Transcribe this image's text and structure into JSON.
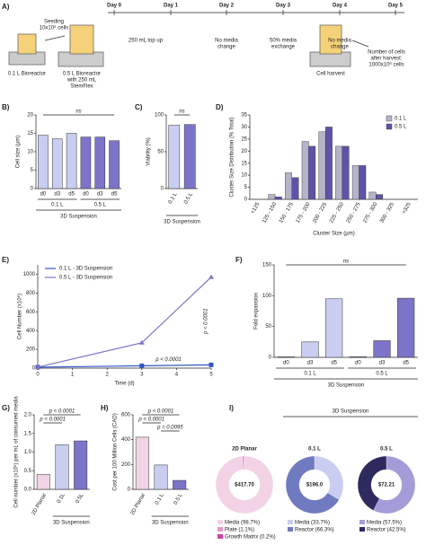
{
  "timeline": {
    "panel": "A)",
    "days": [
      "Day 0",
      "Day 1",
      "Day 2",
      "Day 3",
      "Day 4",
      "Day 5"
    ],
    "notes": [
      [
        "Seeding",
        "10x10⁶ cells"
      ],
      [
        "250 mL top up"
      ],
      [
        "No media",
        "change"
      ],
      [
        "50% media",
        "exchange"
      ],
      [
        "No media",
        "change"
      ],
      [
        "Number of cells",
        "after harvest:",
        "1000x10⁶ cells"
      ]
    ],
    "vessels": [
      [
        "0.1 L Bioreactor"
      ],
      [
        "0.5 L Bioreactor",
        "with 250 mL",
        "StemFlex"
      ],
      [
        "Cell harvest"
      ]
    ]
  },
  "chart_data": [
    {
      "type": "bar",
      "panel": "B)",
      "ylabel": "Cell size (µm)",
      "categories": [
        "d0",
        "d3",
        "d5",
        "d0",
        "d3",
        "d5"
      ],
      "values": [
        14.5,
        13.5,
        15,
        14,
        14,
        13
      ],
      "colors": [
        "#c9cdf0",
        "#c9cdf0",
        "#c9cdf0",
        "#7c74c9",
        "#7c74c9",
        "#7c74c9"
      ],
      "groups": [
        "0.1 L",
        "0.5 L"
      ],
      "group_title": "3D Suspension",
      "ylim": [
        0,
        20
      ],
      "yticks": [
        0,
        5,
        10,
        15,
        20
      ],
      "annotations": [
        "ns"
      ]
    },
    {
      "type": "bar",
      "panel": "C)",
      "ylabel": "Viability (%)",
      "categories": [
        "0.1 L",
        "0.5 L"
      ],
      "values": [
        86,
        87
      ],
      "colors": [
        "#c9cdf0",
        "#7c74c9"
      ],
      "group_title": "3D Suspension",
      "ylim": [
        0,
        100
      ],
      "yticks": [
        0,
        50,
        100
      ],
      "annotations": [
        "ns"
      ]
    },
    {
      "type": "grouped_bar",
      "panel": "D)",
      "ylabel": "Cluster Size Distribution (% Total)",
      "xlabel": "Cluster Size (µm)",
      "categories": [
        "<125",
        "125 - 150",
        "150 - 175",
        "175 - 200",
        "200 - 225",
        "225 - 250",
        "250 - 275",
        "275 - 300",
        "300 - 325",
        ">325"
      ],
      "series": [
        {
          "name": "0.1 L",
          "color": "#b3b3c9",
          "values": [
            0,
            2,
            11,
            24,
            28,
            22,
            14,
            3,
            0,
            0
          ]
        },
        {
          "name": "0.5 L",
          "color": "#5c54a9",
          "values": [
            0,
            1,
            9,
            22,
            30,
            22,
            14,
            2,
            0,
            0
          ]
        }
      ],
      "ylim": [
        0,
        35
      ],
      "yticks": [
        0,
        5,
        10,
        15,
        20,
        25,
        30,
        35
      ],
      "legend": "upper right"
    },
    {
      "type": "line",
      "panel": "E)",
      "ylabel": "Cell Number (x10⁶)",
      "xlabel": "Time (d)",
      "x": [
        0,
        3,
        5
      ],
      "series": [
        {
          "name": "0.1 L - 3D Suspension",
          "color": "#2f55c8",
          "marker": "square",
          "values": [
            10,
            25,
            35
          ]
        },
        {
          "name": "0.5 L - 3D Suspension",
          "color": "#7c74c9",
          "marker": "triangle",
          "values": [
            10,
            270,
            970
          ]
        }
      ],
      "xlim": [
        0,
        5
      ],
      "xticks": [
        0,
        1,
        2,
        3,
        4,
        5
      ],
      "ylim": [
        0,
        1100
      ],
      "yticks": [
        0,
        200,
        400,
        600,
        800,
        1000
      ],
      "annotations": [
        "p < 0.0001",
        "p < 0.0001"
      ],
      "legend": "upper left"
    },
    {
      "type": "bar",
      "panel": "F)",
      "ylabel": "Fold expansion",
      "categories": [
        "d0",
        "d3",
        "d5",
        "d0",
        "d3",
        "d5"
      ],
      "values": [
        1,
        25,
        95,
        1,
        27,
        96
      ],
      "colors": [
        "#c9cdf0",
        "#c9cdf0",
        "#c9cdf0",
        "#7c74c9",
        "#7c74c9",
        "#7c74c9"
      ],
      "groups": [
        "0.1 L",
        "0.5 L"
      ],
      "group_title": "3D Suspension",
      "ylim": [
        0,
        150
      ],
      "yticks": [
        0,
        50,
        100,
        150
      ],
      "annotations": [
        "ns"
      ]
    },
    {
      "type": "bar",
      "panel": "G)",
      "ylabel": "Cell number (x10⁶) per mL of consumed media",
      "categories": [
        "2D Planar",
        "0.1L",
        "0.5L"
      ],
      "values": [
        0.4,
        1.2,
        1.3
      ],
      "colors": [
        "#f2d3e6",
        "#c9cdf0",
        "#7c74c9"
      ],
      "group_title": "3D Suspension",
      "ylim": [
        0,
        2
      ],
      "yticks": [
        {
          "value": 0,
          "label": "0.0"
        },
        0.5,
        {
          "value": 1,
          "label": "1.0"
        },
        1.5,
        {
          "value": 2,
          "label": "2.0"
        }
      ],
      "annotations": [
        "p < 0.0001",
        "p < 0.0001"
      ]
    },
    {
      "type": "bar",
      "panel": "H)",
      "ylabel": "Cost per 100 Million Cells (CAD)",
      "categories": [
        "2D Planar",
        "0.1 L",
        "0.5 L"
      ],
      "values": [
        420,
        196,
        72
      ],
      "colors": [
        "#f2d3e6",
        "#c9cdf0",
        "#7c74c9"
      ],
      "group_title": "3D Suspension",
      "ylim": [
        0,
        600
      ],
      "yticks": [
        0,
        200,
        400,
        600
      ],
      "annotations": [
        "p < 0.0001",
        "p < 0.0001",
        "p = 0.0095"
      ]
    },
    {
      "type": "donut",
      "panel": "I)",
      "title": "2D Planar",
      "center": "$417.70",
      "labels": [
        "Media (98.7%)",
        "Plate (1.1%)",
        "Growth Matrix (0.2%)"
      ],
      "values": [
        98.7,
        1.1,
        0.2
      ],
      "colors": [
        "#f2d3e6",
        "#e39ac4",
        "#d43fa8"
      ]
    },
    {
      "type": "donut",
      "title": "0.1 L",
      "group_title": "3D Suspension",
      "center": "$196.0",
      "labels": [
        "Media (33.7%)",
        "Reactor (66.3%)"
      ],
      "values": [
        33.7,
        66.3
      ],
      "colors": [
        "#c9cdf0",
        "#6f7ac0"
      ]
    },
    {
      "type": "donut",
      "title": "0.5 L",
      "center": "$72.21",
      "labels": [
        "Media (57.5%)",
        "Reactor (42.5%)"
      ],
      "values": [
        57.5,
        42.5
      ],
      "colors": [
        "#a49cd8",
        "#2f2a5e"
      ]
    }
  ]
}
